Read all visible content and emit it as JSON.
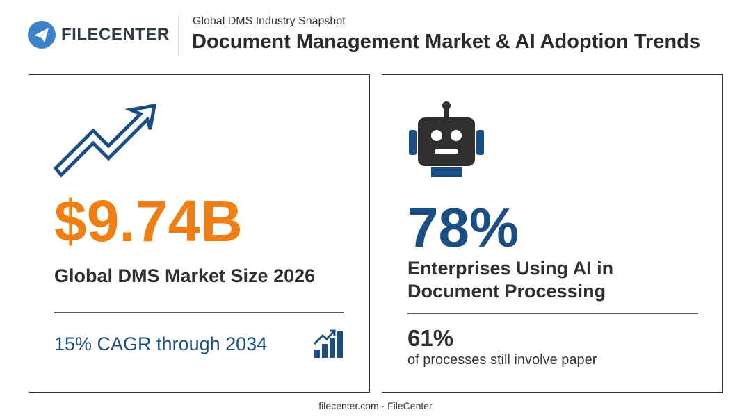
{
  "header": {
    "logo_text": "FILECENTER",
    "eyebrow": "Global DMS Industry Snapshot",
    "title": "Document Management Market & AI Adoption Trends"
  },
  "cards": {
    "market": {
      "icon": "trend-arrow-icon",
      "value": "$9.74B",
      "label": "Global DMS Market Size 2026",
      "sub": "15% CAGR through 2034",
      "sub_icon": "bar-chart-icon"
    },
    "ai": {
      "icon": "robot-icon",
      "value": "78%",
      "label": "Enterprises Using AI in Document Processing",
      "sub_value": "61%",
      "sub_text": "of processes still involve paper"
    }
  },
  "footer": {
    "text": "filecenter.com · FileCenter"
  },
  "colors": {
    "accent_orange": "#f07e12",
    "accent_blue": "#1b4f83",
    "logo_blue": "#3b82c8",
    "robot_dark": "#2f2f2f"
  }
}
